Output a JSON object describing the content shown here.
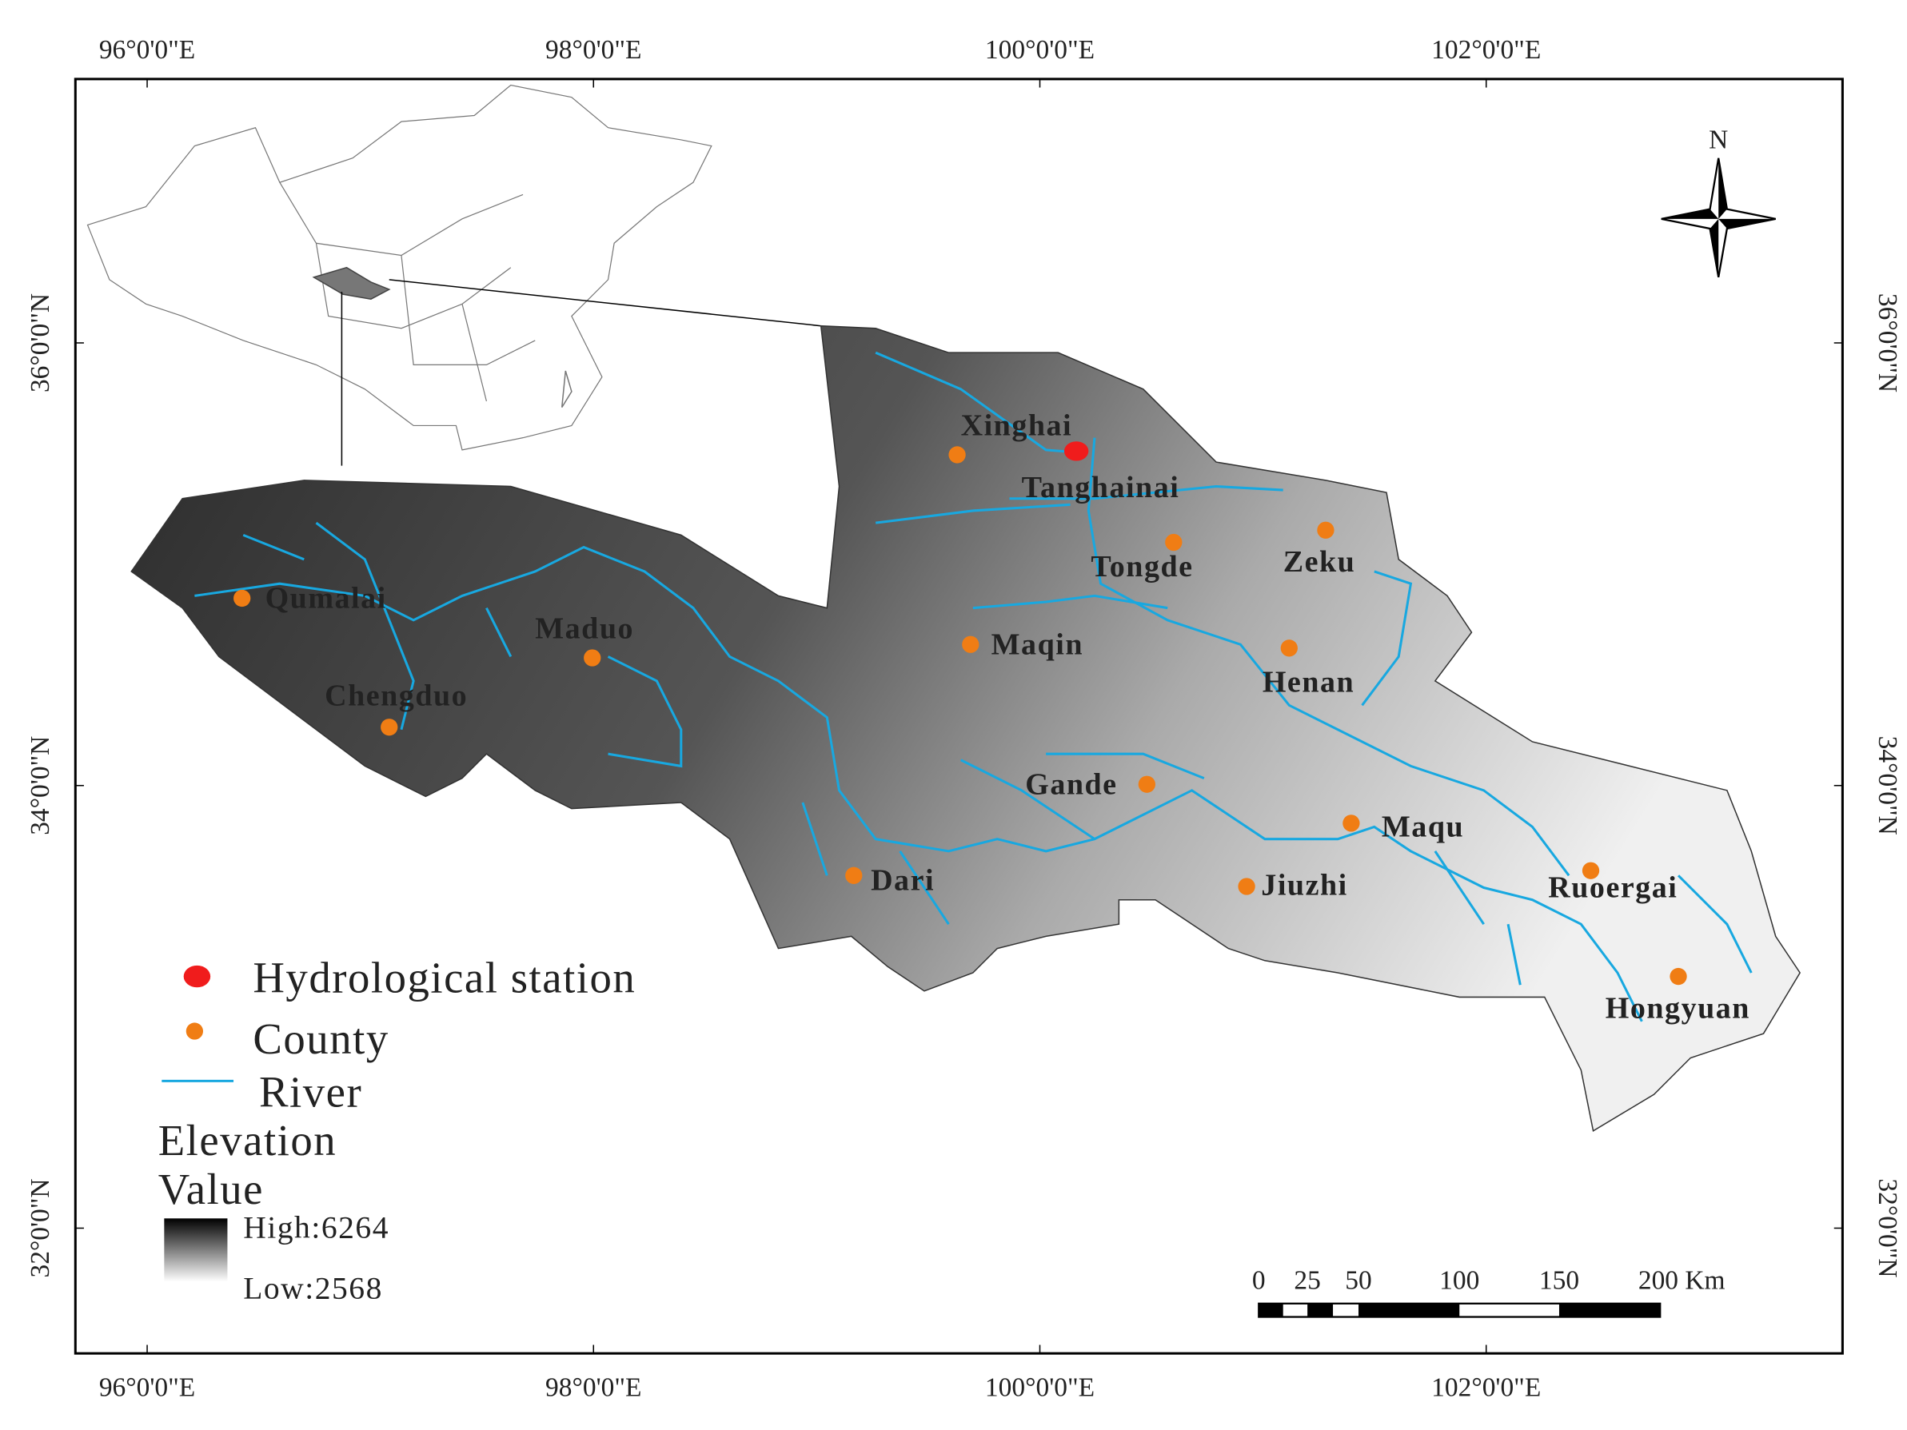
{
  "axes": {
    "lon_ticks": [
      "96°0'0\"E",
      "98°0'0\"E",
      "100°0'0\"E",
      "102°0'0\"E"
    ],
    "lat_ticks": [
      "36°0'0\"N",
      "34°0'0\"N",
      "32°0'0\"N"
    ]
  },
  "north": "N",
  "station": {
    "label": "Tanghainai"
  },
  "counties": [
    "Qumalai",
    "Maduo",
    "Chengduo",
    "Maqin",
    "Xinghai",
    "Tongde",
    "Zeku",
    "Henan",
    "Gande",
    "Maqu",
    "Dari",
    "Jiuzhi",
    "Ruoergai",
    "Hongyuan"
  ],
  "legend": {
    "station": "Hydrological station",
    "county": "County",
    "river": "River",
    "elevation_title": [
      "Elevation",
      "Value"
    ],
    "high": "High:6264",
    "low": "Low:2568"
  },
  "scale_bar": {
    "labels": [
      "0",
      "25",
      "50",
      "100",
      "150",
      "200 Km"
    ]
  }
}
